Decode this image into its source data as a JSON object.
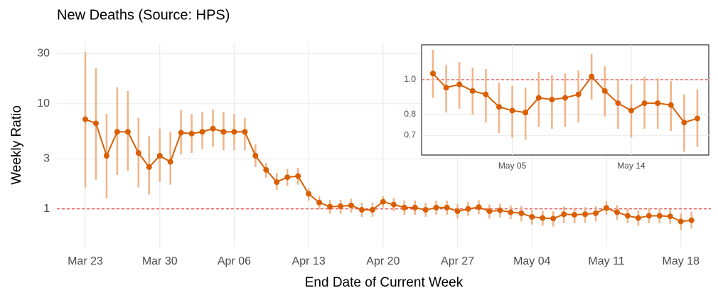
{
  "chart_data": [
    {
      "type": "line",
      "title": "New Deaths (Source: HPS)",
      "xlabel": "End Date of Current Week",
      "ylabel": "Weekly Ratio",
      "log_y": true,
      "grid": true,
      "color": "#d95f02",
      "errorbar_color": "#f1b386",
      "reference_line": 1,
      "reference_color": "#e41a1c",
      "categories": [
        "Mar 23",
        "Mar 24",
        "Mar 25",
        "Mar 26",
        "Mar 27",
        "Mar 28",
        "Mar 29",
        "Mar 30",
        "Mar 31",
        "Apr 01",
        "Apr 02",
        "Apr 03",
        "Apr 04",
        "Apr 05",
        "Apr 06",
        "Apr 07",
        "Apr 08",
        "Apr 09",
        "Apr 10",
        "Apr 11",
        "Apr 12",
        "Apr 13",
        "Apr 14",
        "Apr 15",
        "Apr 16",
        "Apr 17",
        "Apr 18",
        "Apr 19",
        "Apr 20",
        "Apr 21",
        "Apr 22",
        "Apr 23",
        "Apr 24",
        "Apr 25",
        "Apr 26",
        "Apr 27",
        "Apr 28",
        "Apr 29",
        "Apr 30",
        "May 01",
        "May 02",
        "May 03",
        "May 04",
        "May 05",
        "May 06",
        "May 07",
        "May 08",
        "May 09",
        "May 10",
        "May 11",
        "May 12",
        "May 13",
        "May 14",
        "May 15",
        "May 16",
        "May 17",
        "May 18",
        "May 19"
      ],
      "values": [
        7.1,
        6.5,
        3.2,
        5.4,
        5.4,
        3.4,
        2.5,
        3.2,
        2.8,
        5.3,
        5.2,
        5.4,
        5.8,
        5.4,
        5.4,
        5.4,
        3.2,
        2.35,
        1.8,
        2.0,
        2.05,
        1.39,
        1.15,
        1.05,
        1.06,
        1.08,
        0.98,
        0.98,
        1.17,
        1.1,
        1.03,
        1.03,
        0.98,
        1.03,
        1.03,
        0.95,
        1.0,
        1.04,
        0.95,
        0.97,
        0.93,
        0.91,
        0.84,
        0.82,
        0.81,
        0.89,
        0.88,
        0.89,
        0.91,
        1.02,
        0.93,
        0.86,
        0.82,
        0.86,
        0.86,
        0.85,
        0.76,
        0.78
      ],
      "lower": [
        1.6,
        1.9,
        1.26,
        2.1,
        2.3,
        1.6,
        1.37,
        1.8,
        1.7,
        3.3,
        3.4,
        3.7,
        3.9,
        3.6,
        3.6,
        3.6,
        2.5,
        1.98,
        1.52,
        1.65,
        1.7,
        1.2,
        1.0,
        0.9,
        0.9,
        0.92,
        0.84,
        0.84,
        1.03,
        0.95,
        0.88,
        0.88,
        0.84,
        0.88,
        0.88,
        0.81,
        0.86,
        0.89,
        0.81,
        0.83,
        0.8,
        0.76,
        0.71,
        0.69,
        0.68,
        0.74,
        0.73,
        0.74,
        0.76,
        0.88,
        0.79,
        0.73,
        0.69,
        0.73,
        0.73,
        0.72,
        0.63,
        0.65
      ],
      "upper": [
        31,
        21.8,
        8.0,
        14.3,
        13.2,
        7.3,
        4.9,
        5.8,
        5.4,
        8.7,
        8.0,
        8.4,
        8.8,
        8.4,
        8.0,
        7.3,
        4.1,
        2.75,
        2.2,
        2.4,
        2.45,
        1.57,
        1.32,
        1.22,
        1.22,
        1.25,
        1.15,
        1.15,
        1.32,
        1.27,
        1.2,
        1.2,
        1.14,
        1.2,
        1.2,
        1.11,
        1.17,
        1.21,
        1.1,
        1.12,
        1.08,
        1.07,
        0.98,
        0.96,
        0.95,
        1.05,
        1.03,
        1.04,
        1.06,
        1.18,
        1.09,
        1.0,
        0.97,
        1.02,
        1.01,
        0.99,
        0.91,
        0.94
      ],
      "ylim": [
        0.43,
        38
      ],
      "yticks": [
        1,
        3,
        10,
        30
      ],
      "xticks": [
        "Mar 23",
        "Mar 30",
        "Apr 06",
        "Apr 13",
        "Apr 20",
        "Apr 27",
        "May 04",
        "May 11",
        "May 18"
      ]
    },
    {
      "type": "line",
      "log_y": true,
      "grid": true,
      "color": "#d95f02",
      "errorbar_color": "#f1b386",
      "reference_line": 1,
      "reference_color": "#e41a1c",
      "categories": [
        "Apr 29",
        "Apr 30",
        "May 01",
        "May 02",
        "May 03",
        "May 04",
        "May 05",
        "May 06",
        "May 07",
        "May 08",
        "May 09",
        "May 10",
        "May 11",
        "May 12",
        "May 13",
        "May 14",
        "May 15",
        "May 16",
        "May 17",
        "May 18",
        "May 19"
      ],
      "values": [
        1.04,
        0.95,
        0.97,
        0.93,
        0.91,
        0.84,
        0.82,
        0.81,
        0.89,
        0.88,
        0.89,
        0.91,
        1.02,
        0.93,
        0.86,
        0.82,
        0.86,
        0.86,
        0.85,
        0.76,
        0.78
      ],
      "lower": [
        0.89,
        0.81,
        0.83,
        0.8,
        0.76,
        0.71,
        0.69,
        0.68,
        0.74,
        0.73,
        0.74,
        0.76,
        0.88,
        0.79,
        0.73,
        0.69,
        0.73,
        0.73,
        0.72,
        0.63,
        0.65
      ],
      "upper": [
        1.21,
        1.1,
        1.12,
        1.08,
        1.07,
        0.98,
        0.96,
        0.95,
        1.05,
        1.03,
        1.04,
        1.06,
        1.18,
        1.09,
        1.0,
        0.97,
        1.02,
        1.01,
        0.99,
        0.91,
        0.94
      ],
      "ylim": [
        0.617,
        1.25
      ],
      "yticks": [
        0.7,
        0.8,
        {
          "value": 1,
          "label": "1.0"
        }
      ],
      "xticks": [
        "May 05",
        "May 14"
      ]
    }
  ]
}
